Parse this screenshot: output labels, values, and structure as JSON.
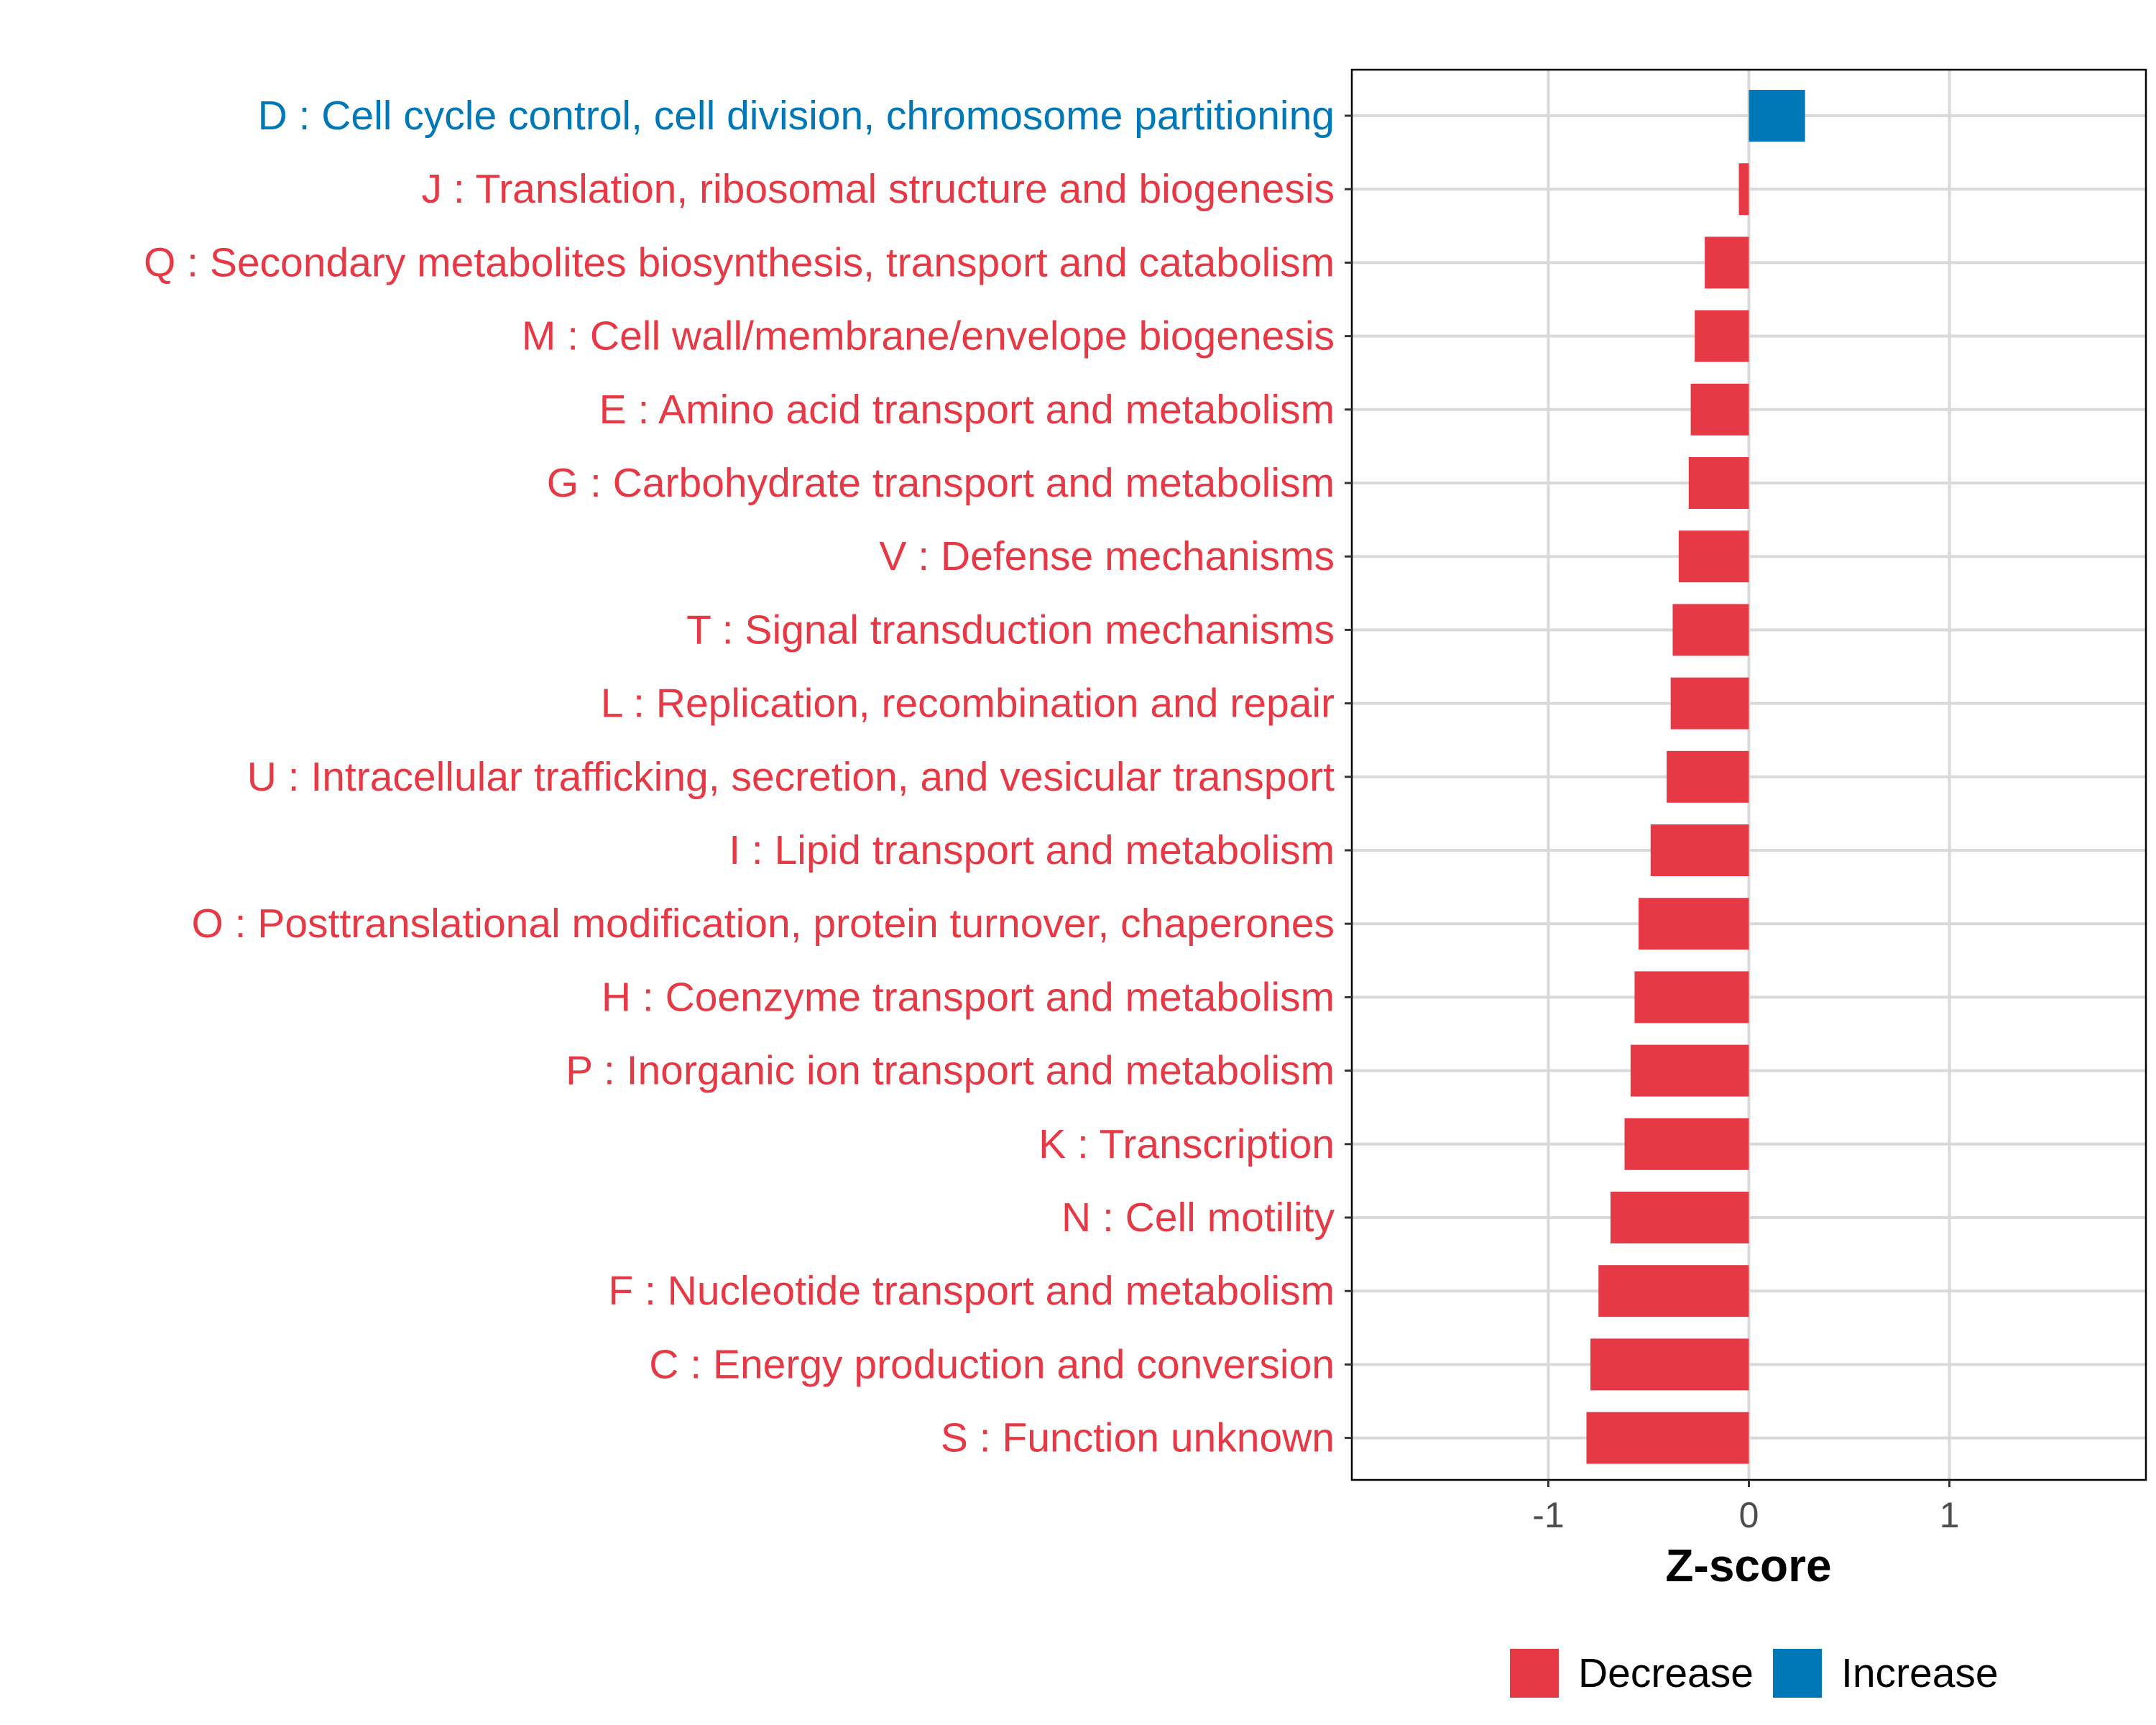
{
  "chart_data": {
    "type": "bar",
    "orientation": "horizontal",
    "title": "",
    "xlabel": "Z-score",
    "ylabel": "",
    "xlim": [
      -1.98,
      1.98
    ],
    "xticks": [
      -1,
      0,
      1
    ],
    "xtick_labels": [
      "-1",
      "0",
      "1"
    ],
    "grid": true,
    "legend_position": "bottom",
    "legend": [
      {
        "label": "Decrease",
        "color": "#E63946"
      },
      {
        "label": "Increase",
        "color": "#0077B6"
      }
    ],
    "categories": [
      {
        "label": "D : Cell cycle control, cell division, chromosome partitioning",
        "value": 0.28,
        "direction": "Increase"
      },
      {
        "label": "J : Translation, ribosomal structure and biogenesis",
        "value": -0.05,
        "direction": "Decrease"
      },
      {
        "label": "Q : Secondary metabolites biosynthesis, transport and catabolism",
        "value": -0.22,
        "direction": "Decrease"
      },
      {
        "label": "M : Cell wall/membrane/envelope biogenesis",
        "value": -0.27,
        "direction": "Decrease"
      },
      {
        "label": "E : Amino acid transport and metabolism",
        "value": -0.29,
        "direction": "Decrease"
      },
      {
        "label": "G : Carbohydrate transport and metabolism",
        "value": -0.3,
        "direction": "Decrease"
      },
      {
        "label": "V : Defense mechanisms",
        "value": -0.35,
        "direction": "Decrease"
      },
      {
        "label": "T : Signal transduction mechanisms",
        "value": -0.38,
        "direction": "Decrease"
      },
      {
        "label": "L : Replication, recombination and repair",
        "value": -0.39,
        "direction": "Decrease"
      },
      {
        "label": "U : Intracellular trafficking, secretion, and vesicular transport",
        "value": -0.41,
        "direction": "Decrease"
      },
      {
        "label": "I : Lipid transport and metabolism",
        "value": -0.49,
        "direction": "Decrease"
      },
      {
        "label": "O : Posttranslational modification, protein turnover, chaperones",
        "value": -0.55,
        "direction": "Decrease"
      },
      {
        "label": "H : Coenzyme transport and metabolism",
        "value": -0.57,
        "direction": "Decrease"
      },
      {
        "label": "P : Inorganic ion transport and metabolism",
        "value": -0.59,
        "direction": "Decrease"
      },
      {
        "label": "K : Transcription",
        "value": -0.62,
        "direction": "Decrease"
      },
      {
        "label": "N : Cell motility",
        "value": -0.69,
        "direction": "Decrease"
      },
      {
        "label": "F : Nucleotide transport and metabolism",
        "value": -0.75,
        "direction": "Decrease"
      },
      {
        "label": "C : Energy production and conversion",
        "value": -0.79,
        "direction": "Decrease"
      },
      {
        "label": "S : Function unknown",
        "value": -0.81,
        "direction": "Decrease"
      }
    ]
  }
}
